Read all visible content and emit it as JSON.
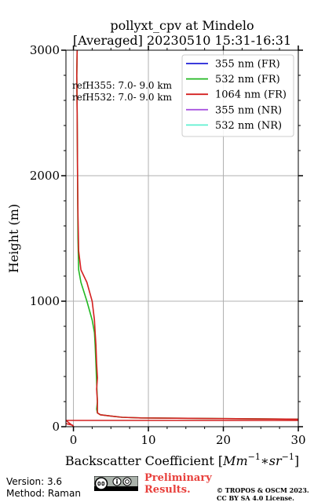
{
  "chart_data": {
    "type": "line",
    "title_line1": "pollyxt_cpv at Mindelo",
    "title_line2": "[Averaged] 20230510 15:31-16:31",
    "xlabel_prefix": "Backscatter Coefficient [",
    "xlabel_math": "Mm",
    "xlabel_exp1": "−1",
    "xlabel_mid": "∗sr",
    "xlabel_exp2": "−1",
    "xlabel_suffix": "]",
    "ylabel": "Height (m)",
    "xlim": [
      -1,
      30
    ],
    "ylim": [
      0,
      3000
    ],
    "xticks": [
      0,
      10,
      20,
      30
    ],
    "xtick_labels": [
      "0",
      "10",
      "20",
      "30"
    ],
    "yticks": [
      0,
      1000,
      2000,
      3000
    ],
    "ytick_labels": [
      "0",
      "1000",
      "2000",
      "3000"
    ],
    "grid": true,
    "legend_position": "top-right",
    "ref_lines": [
      "refH355:  7.0- 9.0 km",
      "refH532:  7.0- 9.0 km"
    ],
    "series": [
      {
        "name": "355 nm (FR)",
        "color": "#1f1fd6",
        "x": [],
        "y": []
      },
      {
        "name": "532 nm (FR)",
        "color": "#22b822",
        "x": [
          30,
          9,
          6.5,
          5,
          3.6,
          3.2,
          3.1,
          3.2,
          3.1,
          3.0,
          2.9,
          2.8,
          2.5,
          1.8,
          1.0,
          0.7,
          0.6,
          0.55,
          0.5,
          0.45,
          0.5
        ],
        "y": [
          60,
          70,
          75,
          85,
          95,
          110,
          140,
          200,
          350,
          500,
          650,
          750,
          850,
          1000,
          1150,
          1250,
          1500,
          2000,
          2500,
          2800,
          3000
        ]
      },
      {
        "name": "1064 nm (FR)",
        "color": "#d42020",
        "x": [
          -1,
          -0.1,
          0.0,
          -1,
          30,
          30,
          9,
          6.5,
          5,
          3.6,
          3.2,
          3.2,
          3.1,
          3.2,
          3.1,
          3.0,
          2.9,
          2.8,
          2.5,
          1.8,
          1.0,
          0.7,
          0.6,
          0.55,
          0.5,
          0.45,
          0.5
        ],
        "y": [
          25,
          12,
          3,
          50,
          50,
          60,
          70,
          75,
          85,
          95,
          110,
          200,
          300,
          390,
          500,
          650,
          750,
          850,
          1000,
          1150,
          1250,
          1400,
          1700,
          2000,
          2500,
          2800,
          3000
        ]
      },
      {
        "name": "355 nm (NR)",
        "color": "#a855e0",
        "x": [],
        "y": []
      },
      {
        "name": "532 nm (NR)",
        "color": "#5ff0d0",
        "x": [],
        "y": []
      }
    ]
  },
  "footer": {
    "version": "Version: 3.6",
    "method": "Method: Raman",
    "preliminary_line1": "Preliminary",
    "preliminary_line2": "Results.",
    "copyright_line1": "© TROPOS & OSCM 2023.",
    "copyright_line2": "CC BY SA 4.0 License."
  }
}
